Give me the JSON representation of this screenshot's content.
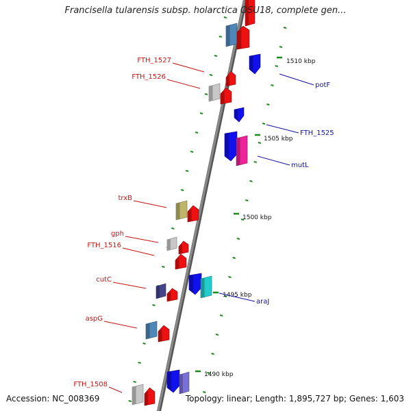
{
  "title": "Francisella tularensis subsp. holarctica OSU18, complete gen...",
  "accession": "Accession: NC_008369",
  "topology": "Topology: linear; Length: 1,895,727 bp; Genes: 1,603",
  "colors": {
    "red": "#ee1111",
    "blue": "#1111ee",
    "steel_blue": "#4f86b8",
    "gray": "#c8c8c8",
    "magenta": "#ee2299",
    "olive": "#bfb56a",
    "navy": "#44448c",
    "cyan": "#22cccc",
    "lavender": "#7a6fd6",
    "tick_green": "#1a8a1a",
    "left_label": "#cc1111",
    "right_label": "#1111aa",
    "backbone": "#8a8a8a"
  },
  "scale_labels": [
    "1510 kbp",
    "1505 kbp",
    "1500 kbp",
    "1495 kbp",
    "1490 kbp"
  ],
  "left_genes": [
    "FTH_1527",
    "FTH_1526",
    "trxB",
    "gph",
    "FTH_1516",
    "cutC",
    "aspG",
    "FTH_1508"
  ],
  "right_genes": [
    "potF",
    "FTH_1525",
    "mutL",
    "araJ"
  ]
}
